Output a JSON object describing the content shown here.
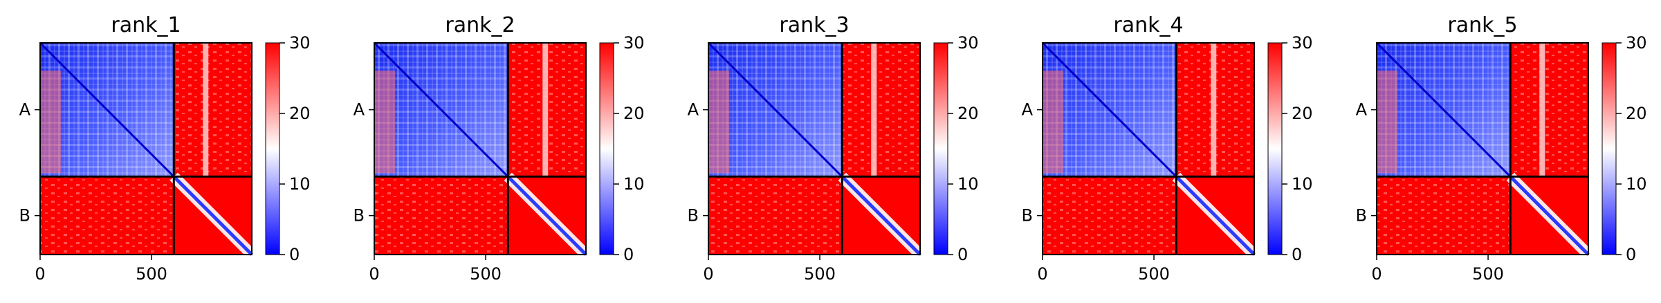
{
  "chart_data": {
    "type": "heatmap",
    "panels": [
      {
        "title": "rank_1"
      },
      {
        "title": "rank_2"
      },
      {
        "title": "rank_3"
      },
      {
        "title": "rank_4"
      },
      {
        "title": "rank_5"
      }
    ],
    "chains": [
      "A",
      "B"
    ],
    "chain_boundary": 600,
    "residue_count": 950,
    "xticks": [
      0,
      500
    ],
    "xtick_labels": [
      "0",
      "500"
    ],
    "colorbar": {
      "min": 0,
      "max": 30,
      "ticks": [
        0,
        10,
        20,
        30
      ],
      "tick_labels": [
        "0",
        "10",
        "20",
        "30"
      ],
      "colors": {
        "low": "#0000ff",
        "mid": "#ffffff",
        "high": "#ff0000"
      }
    },
    "grid": false
  }
}
